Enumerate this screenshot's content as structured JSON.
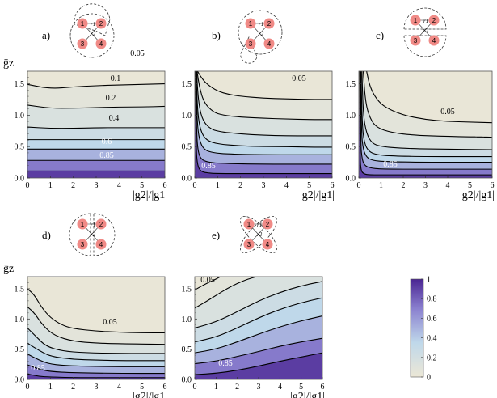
{
  "colorbar": {
    "ticks": [
      "0",
      "0.2",
      "0.4",
      "0.6",
      "0.8",
      "1"
    ],
    "color_low": "#ece7d6",
    "color_mid": "#bfd8ea",
    "color_high": "#4a2592"
  },
  "diagram_nodes": [
    "1",
    "2",
    "3",
    "4"
  ],
  "diagram_edges": [
    "r1",
    "r2"
  ],
  "chart_data": [
    {
      "type": "contour",
      "panel": "a)",
      "xlabel": "|g2|/|g1|",
      "ylabel": "ḡz",
      "xlim": [
        0,
        6
      ],
      "ylim": [
        0,
        1.7
      ],
      "xticks": [
        "0",
        "1",
        "2",
        "3",
        "4",
        "5",
        "6"
      ],
      "yticks": [
        "0.0",
        "0.5",
        "1.0",
        "1.5"
      ],
      "show_ylabel": true,
      "levels": [
        0.05,
        0.1,
        0.2,
        0.3,
        0.4,
        0.6,
        0.85
      ],
      "label_levels": [
        "0.05",
        "0.1",
        "0.2",
        "0.4",
        "0.6",
        "0.85"
      ],
      "contours": [
        {
          "level": 0.05,
          "x": [
            0,
            1,
            2,
            3,
            4,
            5,
            6
          ],
          "y": [
            1.49,
            1.42,
            1.45,
            1.47,
            1.48,
            1.49,
            1.5
          ]
        },
        {
          "level": 0.1,
          "x": [
            0,
            1,
            2,
            3,
            4,
            5,
            6
          ],
          "y": [
            1.16,
            1.11,
            1.11,
            1.12,
            1.13,
            1.13,
            1.14
          ]
        },
        {
          "level": 0.2,
          "x": [
            0,
            1,
            2,
            3,
            4,
            5,
            6
          ],
          "y": [
            0.81,
            0.79,
            0.79,
            0.8,
            0.8,
            0.8,
            0.8
          ]
        },
        {
          "level": 0.3,
          "x": [
            0,
            6
          ],
          "y": [
            0.61,
            0.61
          ]
        },
        {
          "level": 0.4,
          "x": [
            0,
            6
          ],
          "y": [
            0.46,
            0.46
          ]
        },
        {
          "level": 0.6,
          "x": [
            0,
            6
          ],
          "y": [
            0.28,
            0.28
          ]
        },
        {
          "level": 0.85,
          "x": [
            0,
            6
          ],
          "y": [
            0.11,
            0.11
          ]
        }
      ]
    },
    {
      "type": "contour",
      "panel": "b)",
      "xlabel": "|g2|/|g1|",
      "ylabel": "",
      "xlim": [
        0,
        6
      ],
      "ylim": [
        0,
        1.7
      ],
      "xticks": [
        "0",
        "1",
        "2",
        "3",
        "4",
        "5",
        "6"
      ],
      "yticks": [
        "0.0",
        "0.5",
        "1.0",
        "1.5"
      ],
      "show_ylabel": false,
      "levels": [
        0.05,
        0.1,
        0.2,
        0.3,
        0.4,
        0.6,
        0.85
      ],
      "label_levels": [
        "0.05",
        "0.85"
      ],
      "contours": [
        {
          "level": 0.05,
          "x": [
            0.12,
            0.25,
            0.5,
            1,
            1.5,
            2,
            3,
            4,
            5,
            6
          ],
          "y": [
            1.7,
            1.62,
            1.5,
            1.38,
            1.33,
            1.3,
            1.27,
            1.26,
            1.25,
            1.25
          ]
        },
        {
          "level": 0.1,
          "x": [
            0.1,
            0.2,
            0.4,
            0.8,
            1.2,
            2,
            3,
            4,
            5,
            6
          ],
          "y": [
            1.7,
            1.45,
            1.2,
            1.05,
            1.0,
            0.97,
            0.95,
            0.94,
            0.93,
            0.93
          ]
        },
        {
          "level": 0.2,
          "x": [
            0.08,
            0.15,
            0.3,
            0.6,
            1,
            2,
            3,
            4,
            5,
            6
          ],
          "y": [
            1.7,
            1.25,
            0.95,
            0.8,
            0.74,
            0.7,
            0.68,
            0.67,
            0.67,
            0.67
          ]
        },
        {
          "level": 0.3,
          "x": [
            0.06,
            0.12,
            0.25,
            0.5,
            1,
            2,
            3,
            4,
            5,
            6
          ],
          "y": [
            1.7,
            1.05,
            0.75,
            0.6,
            0.54,
            0.51,
            0.5,
            0.5,
            0.49,
            0.49
          ]
        },
        {
          "level": 0.4,
          "x": [
            0.05,
            0.1,
            0.2,
            0.4,
            0.8,
            1.5,
            3,
            4.5,
            6
          ],
          "y": [
            1.7,
            0.9,
            0.6,
            0.45,
            0.4,
            0.38,
            0.37,
            0.37,
            0.37
          ]
        },
        {
          "level": 0.6,
          "x": [
            0.04,
            0.08,
            0.15,
            0.3,
            0.6,
            1.2,
            3,
            6
          ],
          "y": [
            1.7,
            0.7,
            0.4,
            0.29,
            0.25,
            0.23,
            0.22,
            0.22
          ]
        },
        {
          "level": 0.85,
          "x": [
            0.03,
            0.06,
            0.12,
            0.25,
            0.5,
            1,
            3,
            6
          ],
          "y": [
            1.7,
            0.45,
            0.2,
            0.11,
            0.08,
            0.07,
            0.07,
            0.07
          ]
        }
      ]
    },
    {
      "type": "contour",
      "panel": "c)",
      "xlabel": "|g2|/|g1|",
      "ylabel": "",
      "xlim": [
        0,
        6
      ],
      "ylim": [
        0,
        1.7
      ],
      "xticks": [
        "0",
        "1",
        "2",
        "3",
        "4",
        "5",
        "6"
      ],
      "yticks": [
        "0.0",
        "0.5",
        "1.0",
        "1.5"
      ],
      "show_ylabel": false,
      "levels": [
        0.05,
        0.1,
        0.2,
        0.3,
        0.4,
        0.6,
        0.85
      ],
      "label_levels": [
        "0.05",
        "0.85"
      ],
      "contours": [
        {
          "level": 0.05,
          "x": [
            0.35,
            0.5,
            0.8,
            1.2,
            2,
            3,
            4,
            5,
            6
          ],
          "y": [
            1.7,
            1.45,
            1.25,
            1.12,
            1.0,
            0.93,
            0.9,
            0.89,
            0.88
          ]
        },
        {
          "level": 0.1,
          "x": [
            0.2,
            0.3,
            0.5,
            0.8,
            1.5,
            2.5,
            4,
            6
          ],
          "y": [
            1.7,
            1.2,
            0.95,
            0.8,
            0.72,
            0.68,
            0.66,
            0.65
          ]
        },
        {
          "level": 0.2,
          "x": [
            0.14,
            0.2,
            0.35,
            0.6,
            1,
            2,
            3.5,
            6
          ],
          "y": [
            1.7,
            1.0,
            0.7,
            0.55,
            0.5,
            0.47,
            0.46,
            0.45
          ]
        },
        {
          "level": 0.3,
          "x": [
            0.1,
            0.15,
            0.25,
            0.45,
            0.8,
            1.5,
            3,
            6
          ],
          "y": [
            1.7,
            0.85,
            0.55,
            0.42,
            0.37,
            0.35,
            0.34,
            0.34
          ]
        },
        {
          "level": 0.4,
          "x": [
            0.08,
            0.12,
            0.2,
            0.35,
            0.6,
            1.2,
            3,
            6
          ],
          "y": [
            1.7,
            0.7,
            0.45,
            0.33,
            0.28,
            0.26,
            0.25,
            0.25
          ]
        },
        {
          "level": 0.6,
          "x": [
            0.06,
            0.09,
            0.15,
            0.25,
            0.5,
            1,
            3,
            6
          ],
          "y": [
            1.7,
            0.5,
            0.3,
            0.2,
            0.16,
            0.14,
            0.14,
            0.14
          ]
        },
        {
          "level": 0.85,
          "x": [
            0.04,
            0.06,
            0.1,
            0.2,
            0.4,
            1,
            3,
            6
          ],
          "y": [
            1.7,
            0.3,
            0.12,
            0.07,
            0.05,
            0.05,
            0.05,
            0.05
          ]
        }
      ]
    },
    {
      "type": "contour",
      "panel": "d)",
      "xlabel": "|g2|/|g1|",
      "ylabel": "ḡz",
      "xlim": [
        0,
        6
      ],
      "ylim": [
        0,
        1.7
      ],
      "xticks": [
        "0",
        "1",
        "2",
        "3",
        "4",
        "5",
        "6"
      ],
      "yticks": [
        "0.0",
        "0.5",
        "1.0",
        "1.5"
      ],
      "show_ylabel": true,
      "levels": [
        0.05,
        0.1,
        0.2,
        0.3,
        0.4,
        0.6,
        0.85
      ],
      "label_levels": [
        "0.05",
        "0.85"
      ],
      "contours": [
        {
          "level": 0.05,
          "x": [
            0,
            0.3,
            0.6,
            1,
            1.5,
            2,
            3,
            4,
            5,
            6
          ],
          "y": [
            1.5,
            1.4,
            1.2,
            1.02,
            0.9,
            0.84,
            0.8,
            0.78,
            0.77,
            0.77
          ]
        },
        {
          "level": 0.1,
          "x": [
            0,
            0.3,
            0.7,
            1.2,
            2,
            3,
            4,
            6
          ],
          "y": [
            1.2,
            1.1,
            0.88,
            0.72,
            0.63,
            0.6,
            0.59,
            0.58
          ]
        },
        {
          "level": 0.2,
          "x": [
            0,
            0.4,
            0.8,
            1.5,
            2.5,
            4,
            6
          ],
          "y": [
            0.85,
            0.7,
            0.55,
            0.47,
            0.44,
            0.43,
            0.43
          ]
        },
        {
          "level": 0.3,
          "x": [
            0,
            0.5,
            1,
            2,
            3,
            4,
            6
          ],
          "y": [
            0.6,
            0.48,
            0.38,
            0.33,
            0.32,
            0.31,
            0.31
          ]
        },
        {
          "level": 0.4,
          "x": [
            0,
            0.5,
            1,
            2,
            4,
            6
          ],
          "y": [
            0.42,
            0.32,
            0.25,
            0.22,
            0.21,
            0.21
          ]
        },
        {
          "level": 0.6,
          "x": [
            0,
            0.5,
            1,
            2,
            4,
            6
          ],
          "y": [
            0.24,
            0.17,
            0.13,
            0.11,
            0.1,
            0.1
          ]
        },
        {
          "level": 0.85,
          "x": [
            0,
            0.5,
            1,
            2,
            4,
            6
          ],
          "y": [
            0.09,
            0.05,
            0.04,
            0.03,
            0.03,
            0.03
          ]
        }
      ]
    },
    {
      "type": "contour",
      "panel": "e)",
      "xlabel": "|g2|/|g1|",
      "ylabel": "",
      "xlim": [
        0,
        6
      ],
      "ylim": [
        0,
        1.7
      ],
      "xticks": [
        "0",
        "1",
        "2",
        "3",
        "4",
        "5",
        "6"
      ],
      "yticks": [
        "0.0",
        "0.5",
        "1.0",
        "1.5"
      ],
      "show_ylabel": false,
      "levels": [
        0.05,
        0.1,
        0.2,
        0.3,
        0.4,
        0.6,
        0.85
      ],
      "label_levels": [
        "0.05",
        "0.85"
      ],
      "contours": [
        {
          "level": 0.05,
          "x": [
            0,
            0.5,
            1,
            1.2
          ],
          "y": [
            1.48,
            1.58,
            1.66,
            1.7
          ]
        },
        {
          "level": 0.1,
          "x": [
            0,
            0.5,
            1,
            1.5,
            2,
            2.5,
            2.9
          ],
          "y": [
            1.18,
            1.28,
            1.39,
            1.5,
            1.59,
            1.66,
            1.7
          ]
        },
        {
          "level": 0.2,
          "x": [
            0,
            1,
            2,
            3,
            4,
            5,
            6
          ],
          "y": [
            0.85,
            0.95,
            1.12,
            1.3,
            1.44,
            1.55,
            1.62
          ]
        },
        {
          "level": 0.3,
          "x": [
            0,
            1,
            2,
            3,
            4,
            5,
            6
          ],
          "y": [
            0.62,
            0.7,
            0.85,
            1.02,
            1.16,
            1.27,
            1.35
          ]
        },
        {
          "level": 0.4,
          "x": [
            0,
            1,
            2,
            3,
            4,
            5,
            6
          ],
          "y": [
            0.44,
            0.5,
            0.62,
            0.75,
            0.87,
            0.97,
            1.05
          ]
        },
        {
          "level": 0.6,
          "x": [
            0,
            1,
            2,
            3,
            4,
            5,
            6
          ],
          "y": [
            0.26,
            0.3,
            0.38,
            0.46,
            0.55,
            0.62,
            0.68
          ]
        },
        {
          "level": 0.85,
          "x": [
            0,
            1,
            2,
            3,
            4,
            5,
            6
          ],
          "y": [
            0.08,
            0.1,
            0.15,
            0.22,
            0.3,
            0.37,
            0.44
          ]
        }
      ]
    }
  ]
}
